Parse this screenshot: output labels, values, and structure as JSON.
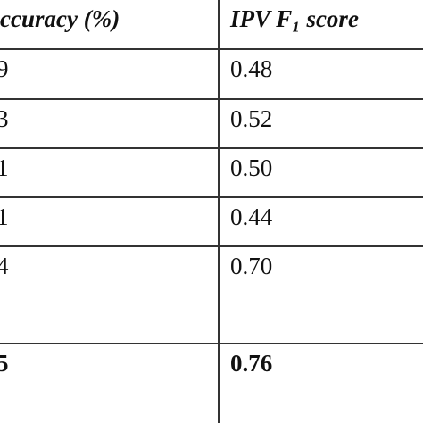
{
  "table": {
    "header": [
      "ccuracy (%)",
      "IPV F₁ score"
    ],
    "rows": [
      [
        "9",
        "0.48"
      ],
      [
        "3",
        "0.52"
      ],
      [
        "1",
        "0.50"
      ],
      [
        "1",
        "0.44"
      ],
      [
        "4",
        "0.70"
      ],
      [
        "5",
        "0.76"
      ]
    ]
  }
}
